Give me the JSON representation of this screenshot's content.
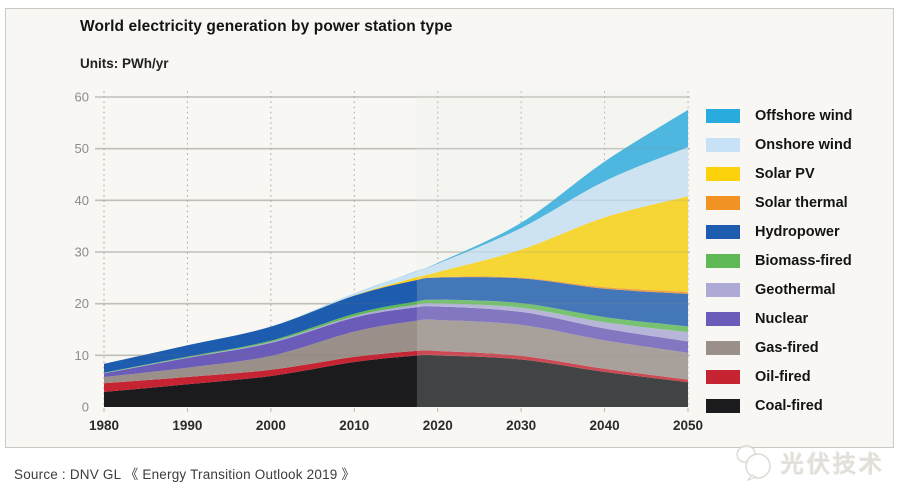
{
  "source_line": "Source : DNV GL 《 Energy Transition Outlook 2019 》",
  "watermark": {
    "text": "光伏技术"
  },
  "chart_data": {
    "type": "area",
    "stacked": true,
    "title": "World electricity generation by power station type",
    "units_label": "Units: PWh/yr",
    "ylabel": "PWh/yr",
    "xlabel": "",
    "x": [
      1980,
      1990,
      2000,
      2010,
      2017,
      2020,
      2030,
      2040,
      2050
    ],
    "xticks": [
      1980,
      1990,
      2000,
      2010,
      2020,
      2030,
      2040,
      2050
    ],
    "yticks": [
      0,
      10,
      20,
      30,
      40,
      50,
      60
    ],
    "xlim": [
      1980,
      2050
    ],
    "ylim": [
      0,
      60
    ],
    "grid": {
      "horizontal": "solid",
      "vertical": "dotted"
    },
    "legend_position": "right",
    "legend_order": "top-down (reverse of stacking order)",
    "forecast_start": 2017.5,
    "forecast_note": "region after 2017 drawn lighter (forecast)",
    "series": [
      {
        "name": "Coal-fired",
        "color": "#1b1b1d",
        "values": [
          2.9,
          4.4,
          6.0,
          8.7,
          9.9,
          10.0,
          9.2,
          6.8,
          4.8
        ]
      },
      {
        "name": "Oil-fired",
        "color": "#c72433",
        "values": [
          1.7,
          1.4,
          1.2,
          1.0,
          0.9,
          0.85,
          0.7,
          0.6,
          0.5
        ]
      },
      {
        "name": "Gas-fired",
        "color": "#9a9089",
        "values": [
          1.2,
          1.8,
          2.7,
          4.9,
          5.8,
          6.0,
          6.0,
          5.5,
          5.2
        ]
      },
      {
        "name": "Nuclear",
        "color": "#6a5cb8",
        "values": [
          0.7,
          1.9,
          2.5,
          2.7,
          2.6,
          2.6,
          2.5,
          2.3,
          2.2
        ]
      },
      {
        "name": "Geothermal",
        "color": "#aeaad6",
        "values": [
          0.05,
          0.1,
          0.2,
          0.3,
          0.5,
          0.6,
          0.8,
          1.2,
          1.8
        ]
      },
      {
        "name": "Biomass-fired",
        "color": "#5fba55",
        "values": [
          0.1,
          0.15,
          0.25,
          0.45,
          0.6,
          0.7,
          0.9,
          1.0,
          1.1
        ]
      },
      {
        "name": "Hydropower",
        "color": "#1d5cae",
        "values": [
          1.7,
          2.2,
          2.7,
          3.5,
          4.1,
          4.3,
          4.8,
          5.5,
          6.3
        ]
      },
      {
        "name": "Solar thermal",
        "color": "#f29222",
        "values": [
          0,
          0,
          0,
          0.02,
          0.05,
          0.08,
          0.15,
          0.3,
          0.4
        ]
      },
      {
        "name": "Solar PV",
        "color": "#fbd20b",
        "values": [
          0,
          0,
          0,
          0.03,
          0.45,
          1.0,
          5.4,
          13.5,
          18.5
        ]
      },
      {
        "name": "Onshore wind",
        "color": "#c7e2f6",
        "values": [
          0,
          0,
          0.03,
          0.35,
          1.1,
          1.6,
          4.2,
          7.0,
          9.5
        ]
      },
      {
        "name": "Offshore wind",
        "color": "#29abde",
        "values": [
          0,
          0,
          0,
          0.01,
          0.06,
          0.15,
          1.0,
          3.8,
          7.2
        ]
      }
    ]
  }
}
